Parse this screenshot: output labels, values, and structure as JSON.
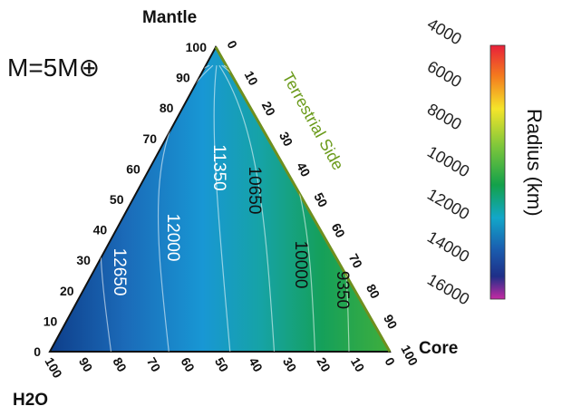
{
  "chart_data": {
    "type": "ternary-contour",
    "annotation": "M=5M⊕",
    "corners": {
      "top": "Mantle",
      "right": "Core",
      "left": "H2O"
    },
    "side_label": "Terrestrial Side",
    "tick_labels": [
      "0",
      "10",
      "20",
      "30",
      "40",
      "50",
      "60",
      "70",
      "80",
      "90",
      "100"
    ],
    "contours": [
      {
        "label": "12650",
        "value": 12650,
        "h2o": 82
      },
      {
        "label": "12000",
        "value": 12000,
        "h2o": 65
      },
      {
        "label": "11350",
        "value": 11350,
        "h2o": 47
      },
      {
        "label": "10650",
        "value": 10650,
        "h2o": 34
      },
      {
        "label": "10000",
        "value": 10000,
        "h2o": 22
      },
      {
        "label": "9350",
        "value": 9350,
        "h2o": 12
      }
    ],
    "colorbar": {
      "title": "Radius (km)",
      "ticks": [
        "4000",
        "6000",
        "8000",
        "10000",
        "12000",
        "14000",
        "16000"
      ],
      "range": [
        4000,
        16000
      ],
      "colors": [
        "#e8203a",
        "#f47a1e",
        "#f5e52a",
        "#7cc63b",
        "#13a14a",
        "#12a7c9",
        "#1a5fb0",
        "#1e2f88",
        "#c52aa3"
      ]
    },
    "radius_range_in_triangle": [
      9000,
      13200
    ]
  }
}
